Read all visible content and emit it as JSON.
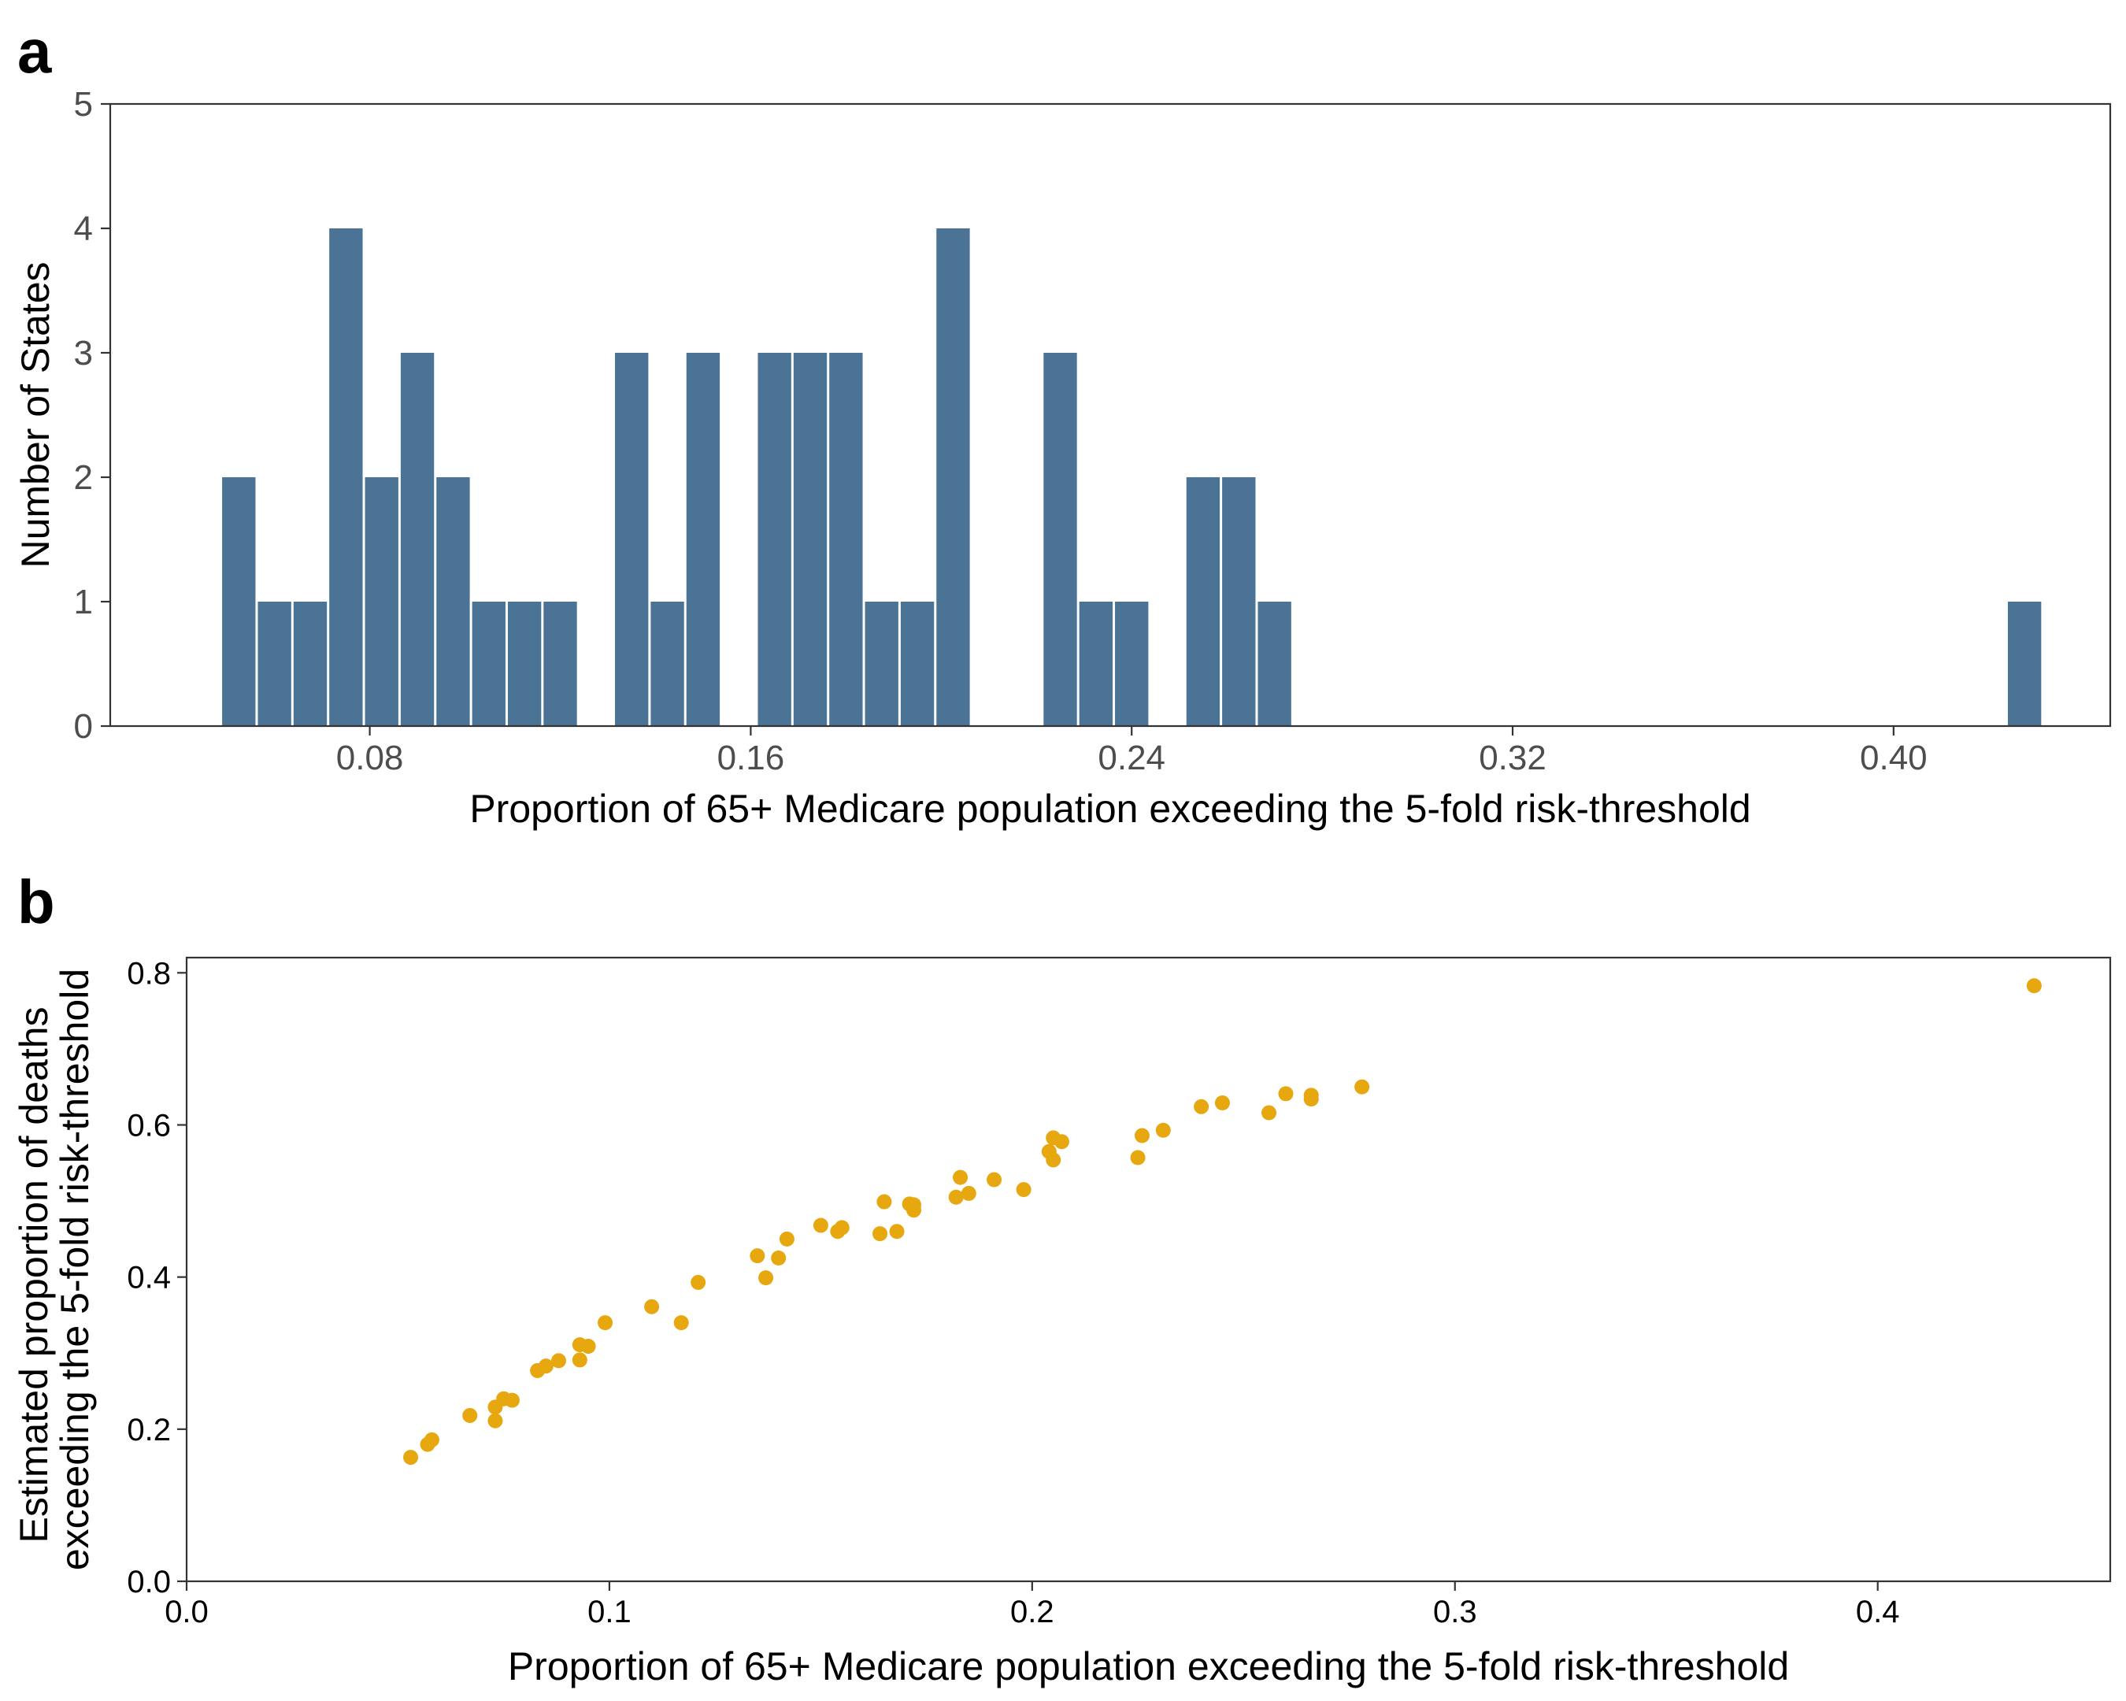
{
  "panels": {
    "a": {
      "letter": "a"
    },
    "b": {
      "letter": "b"
    }
  },
  "colors": {
    "bar": "#4a7396",
    "point": "#e6a70f",
    "axis": "#333333"
  },
  "chart_data": [
    {
      "type": "bar",
      "panel": "a",
      "bin_width": 0.0075,
      "bin_centers": [
        0.0525,
        0.06,
        0.0675,
        0.075,
        0.0825,
        0.09,
        0.0975,
        0.105,
        0.1125,
        0.12,
        0.1275,
        0.135,
        0.1425,
        0.15,
        0.1575,
        0.165,
        0.1725,
        0.18,
        0.1875,
        0.195,
        0.2025,
        0.21,
        0.2175,
        0.225,
        0.2325,
        0.24,
        0.2475,
        0.255,
        0.2625,
        0.27,
        0.4275
      ],
      "values": [
        2,
        1,
        1,
        4,
        2,
        3,
        2,
        1,
        1,
        1,
        0,
        3,
        1,
        3,
        0,
        3,
        3,
        3,
        1,
        1,
        4,
        0,
        0,
        3,
        1,
        1,
        0,
        2,
        2,
        1,
        1
      ],
      "xlim": [
        0.0255,
        0.4455
      ],
      "ylim": [
        0,
        5
      ],
      "xticks": [
        0.08,
        0.16,
        0.24,
        0.32,
        0.4
      ],
      "xtick_labels": [
        "0.08",
        "0.16",
        "0.24",
        "0.32",
        "0.40"
      ],
      "yticks": [
        0,
        1,
        2,
        3,
        4,
        5
      ],
      "ytick_labels": [
        "0",
        "1",
        "2",
        "3",
        "4",
        "5"
      ],
      "xlabel": "Proportion of 65+ Medicare population exceeding the 5-fold risk-threshold",
      "ylabel": "Number of States"
    },
    {
      "type": "scatter",
      "panel": "b",
      "points": [
        [
          0.053,
          0.163
        ],
        [
          0.057,
          0.18
        ],
        [
          0.058,
          0.186
        ],
        [
          0.067,
          0.218
        ],
        [
          0.073,
          0.229
        ],
        [
          0.073,
          0.211
        ],
        [
          0.075,
          0.24
        ],
        [
          0.077,
          0.238
        ],
        [
          0.083,
          0.277
        ],
        [
          0.085,
          0.283
        ],
        [
          0.088,
          0.29
        ],
        [
          0.093,
          0.311
        ],
        [
          0.095,
          0.309
        ],
        [
          0.093,
          0.291
        ],
        [
          0.099,
          0.34
        ],
        [
          0.11,
          0.361
        ],
        [
          0.117,
          0.34
        ],
        [
          0.121,
          0.393
        ],
        [
          0.135,
          0.428
        ],
        [
          0.137,
          0.399
        ],
        [
          0.14,
          0.425
        ],
        [
          0.142,
          0.45
        ],
        [
          0.15,
          0.468
        ],
        [
          0.154,
          0.46
        ],
        [
          0.155,
          0.465
        ],
        [
          0.164,
          0.457
        ],
        [
          0.165,
          0.499
        ],
        [
          0.168,
          0.46
        ],
        [
          0.171,
          0.496
        ],
        [
          0.172,
          0.488
        ],
        [
          0.172,
          0.495
        ],
        [
          0.182,
          0.505
        ],
        [
          0.183,
          0.531
        ],
        [
          0.185,
          0.51
        ],
        [
          0.191,
          0.528
        ],
        [
          0.198,
          0.515
        ],
        [
          0.204,
          0.565
        ],
        [
          0.205,
          0.583
        ],
        [
          0.205,
          0.554
        ],
        [
          0.207,
          0.578
        ],
        [
          0.225,
          0.557
        ],
        [
          0.226,
          0.586
        ],
        [
          0.231,
          0.593
        ],
        [
          0.24,
          0.624
        ],
        [
          0.245,
          0.629
        ],
        [
          0.256,
          0.616
        ],
        [
          0.26,
          0.641
        ],
        [
          0.266,
          0.639
        ],
        [
          0.266,
          0.634
        ],
        [
          0.278,
          0.65
        ],
        [
          0.437,
          0.783
        ]
      ],
      "xlim": [
        0,
        0.455
      ],
      "ylim": [
        0,
        0.82
      ],
      "xticks": [
        0.0,
        0.1,
        0.2,
        0.3,
        0.4
      ],
      "xtick_labels": [
        "0.0",
        "0.1",
        "0.2",
        "0.3",
        "0.4"
      ],
      "yticks": [
        0.0,
        0.2,
        0.4,
        0.6,
        0.8
      ],
      "ytick_labels": [
        "0.0",
        "0.2",
        "0.4",
        "0.6",
        "0.8"
      ],
      "xlabel": "Proportion of 65+ Medicare population exceeding the 5-fold risk-threshold",
      "ylabel_lines": [
        "Estimated proportion of deaths",
        "exceeding the 5-fold risk-threshold"
      ]
    }
  ]
}
